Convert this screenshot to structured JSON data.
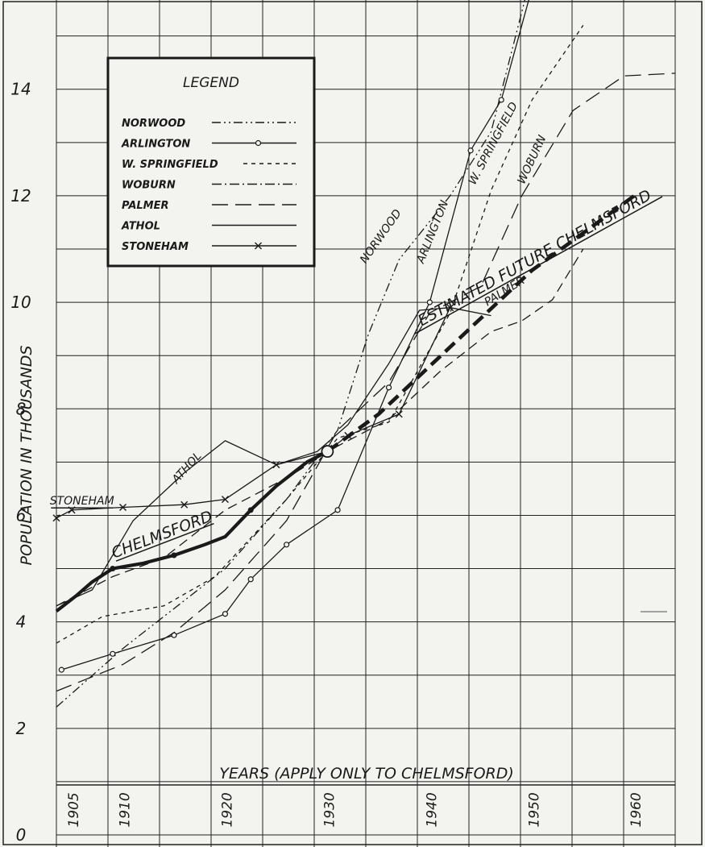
{
  "chart_data": {
    "type": "line",
    "ylabel": "POPULATION IN THOUSANDS",
    "xlabel": "YEARS (APPLY ONLY TO CHELMSFORD)",
    "ylim": [
      0,
      15.6
    ],
    "xlim": [
      1903.5,
      1964
    ],
    "y_ticks": [
      "0",
      "2",
      "4",
      "6",
      "8",
      "10",
      "12",
      "14"
    ],
    "x_ticks": [
      "1905",
      "1910",
      "1920",
      "1930",
      "1940",
      "1950",
      "1960"
    ],
    "grid": true,
    "legend": {
      "title": "LEGEND",
      "position": "top-left",
      "entries": [
        "NORWOOD",
        "ARLINGTON",
        "W. SPRINGFIELD",
        "WOBURN",
        "PALMER",
        "ATHOL",
        "STONEHAM"
      ]
    },
    "series": [
      {
        "name": "CHELMSFORD",
        "color": "#1a1a1a",
        "style": "solid",
        "marker": "dot",
        "x": [
          1903.5,
          1905.5,
          1907,
          1909,
          1910.5,
          1912,
          1915,
          1918,
          1920,
          1922.5,
          1925,
          1928,
          1930
        ],
        "y": [
          4.2,
          4.5,
          4.75,
          5.0,
          5.05,
          5.1,
          5.25,
          5.45,
          5.6,
          6.1,
          6.55,
          7.0,
          7.2
        ]
      },
      {
        "name": "ESTIMATED FUTURE CHELMSFORD",
        "color": "#1a1a1a",
        "style": "dash",
        "x": [
          1930,
          1935,
          1940,
          1945,
          1950,
          1955,
          1960
        ],
        "y": [
          7.2,
          7.9,
          8.8,
          9.7,
          10.6,
          11.3,
          12.0
        ]
      },
      {
        "name": "NORWOOD",
        "color": "#1a1a1a",
        "style": "dashdotdot",
        "x": [
          1903.5,
          1910,
          1920,
          1926,
          1931,
          1934,
          1937,
          1942,
          1946,
          1950
        ],
        "y": [
          2.4,
          3.5,
          5.0,
          6.3,
          7.6,
          9.4,
          10.8,
          12.0,
          13.2,
          16.2
        ]
      },
      {
        "name": "ARLINGTON",
        "color": "#1a1a1a",
        "style": "solid",
        "marker": "circle",
        "x": [
          1904,
          1909,
          1915,
          1920,
          1922.5,
          1926,
          1931,
          1936,
          1940,
          1944,
          1947,
          1950
        ],
        "y": [
          3.1,
          3.4,
          3.75,
          4.15,
          4.8,
          5.45,
          6.1,
          8.4,
          10.0,
          12.85,
          13.8,
          15.9
        ]
      },
      {
        "name": "W. SPRINGFIELD",
        "color": "#1a1a1a",
        "style": "shortdash",
        "x": [
          1903.5,
          1908,
          1914,
          1919,
          1926,
          1931,
          1936,
          1942,
          1946,
          1950,
          1955
        ],
        "y": [
          3.6,
          4.1,
          4.3,
          4.85,
          6.3,
          7.45,
          7.75,
          9.8,
          12.1,
          13.8,
          15.2
        ]
      },
      {
        "name": "WOBURN",
        "color": "#1a1a1a",
        "style": "longdash",
        "x": [
          1903.5,
          1910,
          1915,
          1920,
          1926,
          1931,
          1936,
          1940,
          1945,
          1949,
          1954,
          1959,
          1964
        ],
        "y": [
          2.7,
          3.2,
          3.8,
          4.6,
          5.9,
          7.6,
          8.5,
          9.8,
          10.3,
          12.0,
          13.6,
          14.25,
          14.3
        ]
      },
      {
        "name": "PALMER",
        "color": "#1a1a1a",
        "style": "dash",
        "x": [
          1903.5,
          1909,
          1914,
          1920,
          1926,
          1931,
          1936,
          1941,
          1946,
          1949,
          1952,
          1955
        ],
        "y": [
          4.3,
          4.85,
          5.2,
          6.1,
          6.7,
          7.3,
          7.8,
          8.7,
          9.45,
          9.65,
          10.05,
          11.0
        ]
      },
      {
        "name": "ATHOL",
        "color": "#1a1a1a",
        "style": "solid",
        "x": [
          1903.5,
          1907,
          1911,
          1916,
          1920,
          1925,
          1929,
          1932,
          1936,
          1939,
          1942,
          1946
        ],
        "y": [
          4.3,
          4.6,
          5.9,
          6.8,
          7.4,
          6.95,
          7.2,
          7.7,
          8.85,
          9.85,
          9.9,
          9.75
        ]
      },
      {
        "name": "STONEHAM",
        "color": "#1a1a1a",
        "style": "solid",
        "marker": "x",
        "x": [
          1903.5,
          1905,
          1910,
          1916,
          1920,
          1925,
          1930,
          1932,
          1937,
          1942
        ],
        "y": [
          5.95,
          6.1,
          6.15,
          6.2,
          6.3,
          6.95,
          7.2,
          7.5,
          7.9,
          9.9
        ]
      }
    ],
    "annotations": [
      {
        "text": "NORWOOD",
        "x": 1935.5,
        "y": 11.2,
        "angle": -55
      },
      {
        "text": "ARLINGTON",
        "x": 1940.6,
        "y": 11.3,
        "angle": -68
      },
      {
        "text": "W. SPRINGFIELD",
        "x": 1946.5,
        "y": 12.95,
        "angle": -62
      },
      {
        "text": "WOBURN",
        "x": 1950.3,
        "y": 12.65,
        "angle": -65
      },
      {
        "text": "PALMER",
        "x": 1947.5,
        "y": 10.15,
        "angle": -32
      },
      {
        "text": "ATHOL",
        "x": 1916.5,
        "y": 6.85,
        "angle": -48
      },
      {
        "text": "STONEHAM",
        "x": 1906,
        "y": 6.2,
        "angle": 0
      },
      {
        "text": "CHELMSFORD",
        "x": 1914,
        "y": 5.55,
        "angle": -21
      },
      {
        "text": "ESTIMATED FUTURE CHELMSFORD",
        "x": 1950.5,
        "y": 10.75,
        "angle": -29
      }
    ]
  }
}
